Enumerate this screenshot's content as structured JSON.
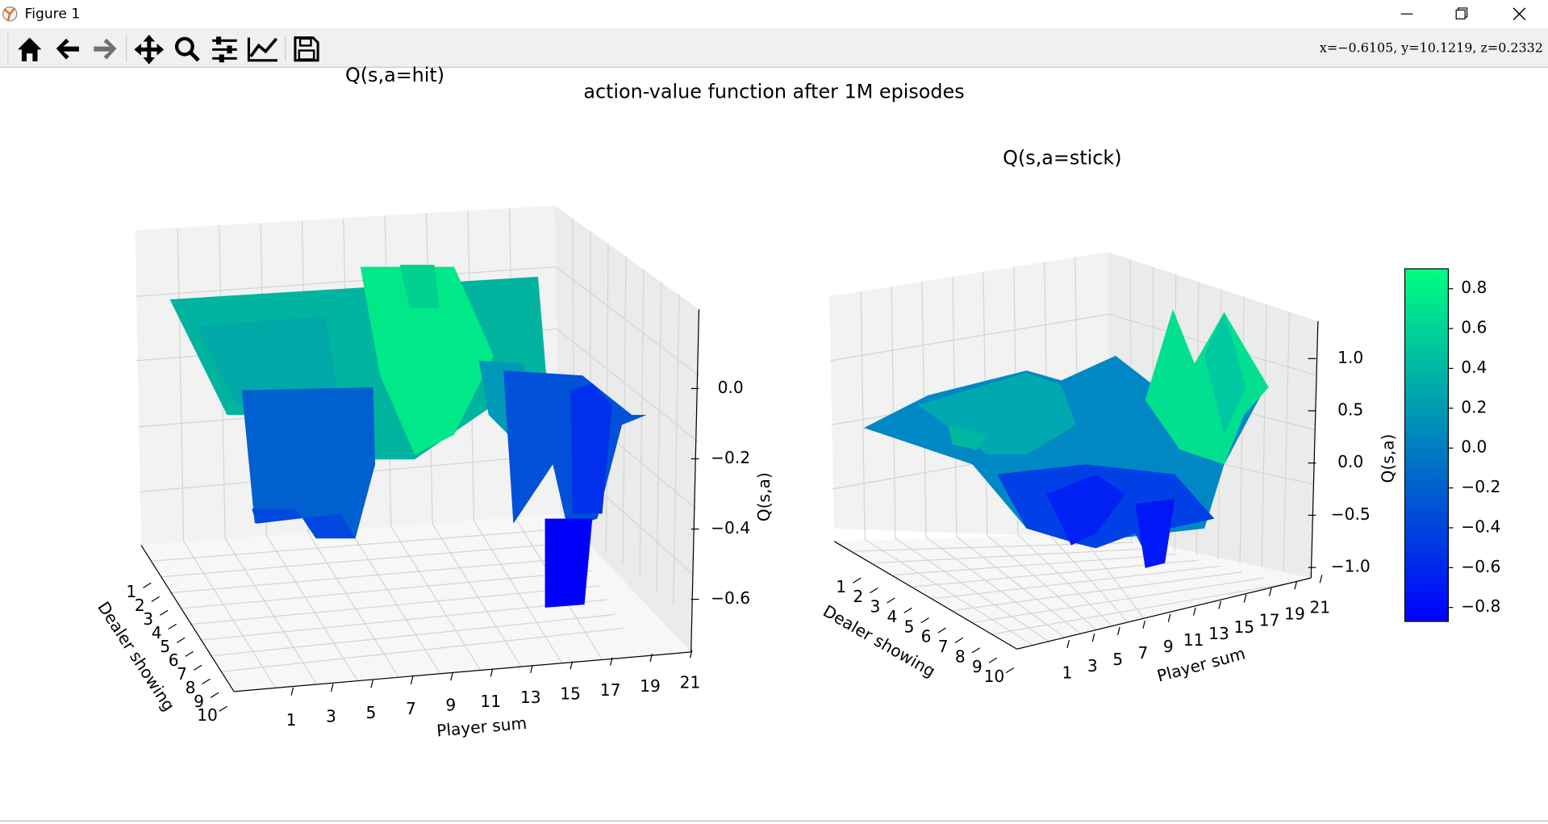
{
  "window": {
    "title": "Figure 1"
  },
  "toolbar": {
    "status": "x=−0.6105, y=10.1219, z=0.2332"
  },
  "figure": {
    "title": "action-value function after 1M episodes"
  },
  "chart_data": [
    {
      "type": "surface3d",
      "title": "Q(s,a=hit)",
      "x_label": "Player sum",
      "y_label": "Dealer showing",
      "z_label": "Q(s,a)",
      "xlim": [
        1,
        21
      ],
      "xticks": [
        1,
        3,
        5,
        7,
        9,
        11,
        13,
        15,
        17,
        19,
        21
      ],
      "ylim": [
        1,
        10
      ],
      "yticks": [
        1,
        2,
        3,
        4,
        5,
        6,
        7,
        8,
        9,
        10
      ],
      "zlim": [
        -0.75,
        0.22
      ],
      "zticks": [
        {
          "value": 0,
          "label": "0.0"
        },
        {
          "value": -0.2,
          "label": "−0.2"
        },
        {
          "value": -0.4,
          "label": "−0.4"
        },
        {
          "value": -0.6,
          "label": "−0.6"
        }
      ]
    },
    {
      "type": "surface3d",
      "title": "Q(s,a=stick)",
      "x_label": "Player sum",
      "y_label": "Dealer showing",
      "xlim": [
        1,
        21
      ],
      "xticks": [
        1,
        3,
        5,
        7,
        9,
        11,
        13,
        15,
        17,
        19,
        21
      ],
      "ylim": [
        1,
        10
      ],
      "yticks": [
        1,
        2,
        3,
        4,
        5,
        6,
        7,
        8,
        9,
        10
      ],
      "zlim": [
        -1.1,
        1.33
      ],
      "zticks": [
        {
          "value": 1,
          "label": "1.0"
        },
        0.5,
        {
          "value": 0,
          "label": "0.0"
        },
        {
          "value": -0.5,
          "label": "−0.5"
        },
        {
          "value": -1,
          "label": "−1.0"
        }
      ],
      "colorbar": {
        "label": "Q(s,a)",
        "clim": [
          -0.87,
          0.9
        ],
        "colors": [
          "#0000ff",
          "#00ff80"
        ],
        "ticks": [
          0.8,
          0.6,
          0.4,
          0.2,
          {
            "value": 0,
            "label": "0.0"
          },
          {
            "value": -0.2,
            "label": "−0.2"
          },
          {
            "value": -0.4,
            "label": "−0.4"
          },
          {
            "value": -0.6,
            "label": "−0.6"
          },
          {
            "value": -0.8,
            "label": "−0.8"
          }
        ]
      }
    }
  ]
}
